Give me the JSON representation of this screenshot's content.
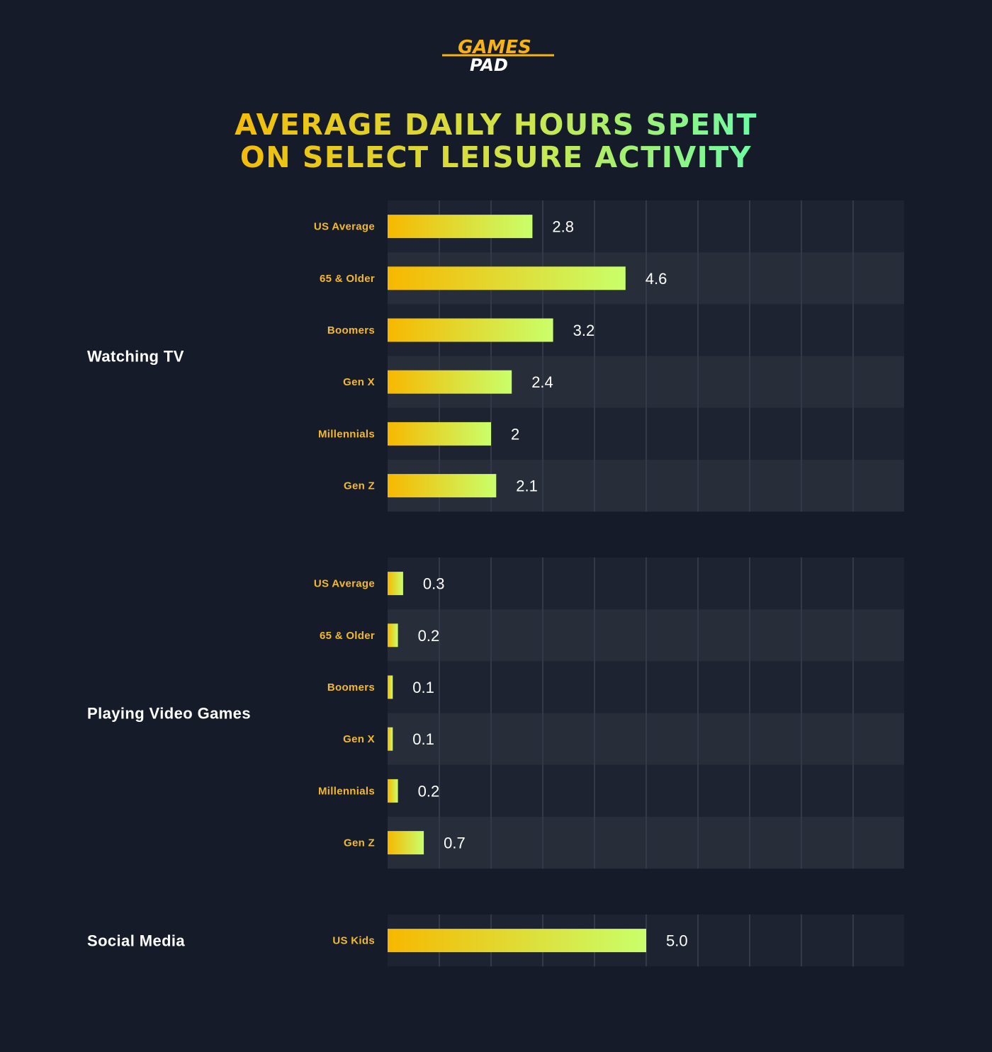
{
  "brand": {
    "logo_line1": "GAMES",
    "logo_line2": "PAD",
    "logo_color": "#f7b316"
  },
  "colors": {
    "background": "#161b29",
    "panel_dark": "#1e2331",
    "panel_light": "#282d3a",
    "gridline": "#343949",
    "bar_start": "#f7b800",
    "bar_end": "#c9ff6a",
    "category_label": "#f3b92c",
    "title_start": "#f7b800",
    "title_end": "#5fffb0"
  },
  "chart_data": {
    "type": "bar",
    "orientation": "horizontal",
    "title": [
      "AVERAGE DAILY HOURS SPENT",
      "ON SELECT LEISURE ACTIVITY"
    ],
    "xlabel": "",
    "ylabel": "",
    "xlim": [
      0,
      10
    ],
    "grid": true,
    "groups": [
      {
        "name": "Watching TV",
        "categories": [
          "US Average",
          "65 & Older",
          "Boomers",
          "Gen X",
          "Millennials",
          "Gen Z"
        ],
        "values": [
          2.8,
          4.6,
          3.2,
          2.4,
          2,
          2.1
        ],
        "labels": [
          "2.8",
          "4.6",
          "3.2",
          "2.4",
          "2",
          "2.1"
        ]
      },
      {
        "name": "Playing Video Games",
        "categories": [
          "US Average",
          "65 & Older",
          "Boomers",
          "Gen X",
          "Millennials",
          "Gen Z"
        ],
        "values": [
          0.3,
          0.2,
          0.1,
          0.1,
          0.2,
          0.7
        ],
        "labels": [
          "0.3",
          "0.2",
          "0.1",
          "0.1",
          "0.2",
          "0.7"
        ]
      },
      {
        "name": "Social Media",
        "categories": [
          "US Kids"
        ],
        "values": [
          5.0
        ],
        "labels": [
          "5.0"
        ]
      }
    ]
  }
}
